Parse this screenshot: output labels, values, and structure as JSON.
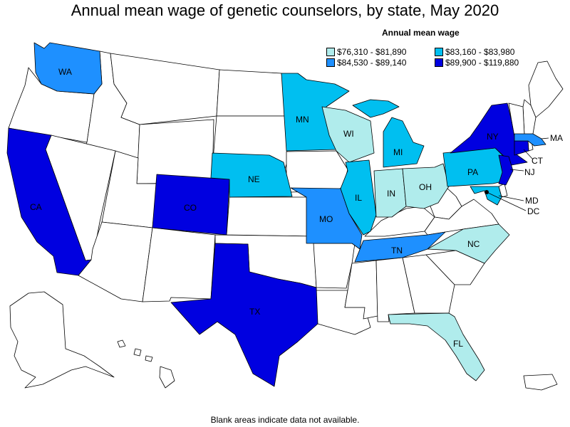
{
  "title": "Annual mean wage of genetic counselors, by state, May 2020",
  "legend": {
    "title": "Annual mean wage",
    "items": [
      {
        "label": "$76,310 - $81,890",
        "color": "#b0ecec"
      },
      {
        "label": "$83,160 - $83,980",
        "color": "#00bff0"
      },
      {
        "label": "$84,530 - $89,140",
        "color": "#1e90ff"
      },
      {
        "label": "$89,900 - $119,880",
        "color": "#0000e0"
      }
    ]
  },
  "footnote": "Blank areas indicate data not available.",
  "states": {
    "WA": {
      "label": "WA",
      "bin": 2
    },
    "CA": {
      "label": "CA",
      "bin": 3
    },
    "CO": {
      "label": "CO",
      "bin": 3
    },
    "TX": {
      "label": "TX",
      "bin": 3
    },
    "NE": {
      "label": "NE",
      "bin": 1
    },
    "MN": {
      "label": "MN",
      "bin": 1
    },
    "MO": {
      "label": "MO",
      "bin": 2
    },
    "WI": {
      "label": "WI",
      "bin": 0
    },
    "IL": {
      "label": "IL",
      "bin": 1
    },
    "IN": {
      "label": "IN",
      "bin": 0
    },
    "MI": {
      "label": "MI",
      "bin": 1
    },
    "OH": {
      "label": "OH",
      "bin": 0
    },
    "TN": {
      "label": "TN",
      "bin": 2
    },
    "NC": {
      "label": "NC",
      "bin": 0
    },
    "FL": {
      "label": "FL",
      "bin": 0
    },
    "PA": {
      "label": "PA",
      "bin": 1
    },
    "NY": {
      "label": "NY",
      "bin": 3
    },
    "NJ": {
      "label": "NJ",
      "bin": 3
    },
    "CT": {
      "label": "CT",
      "bin": 3
    },
    "MA": {
      "label": "MA",
      "bin": 2
    },
    "MD": {
      "label": "MD",
      "bin": 1
    },
    "DC": {
      "label": "DC",
      "bin": 0
    }
  }
}
